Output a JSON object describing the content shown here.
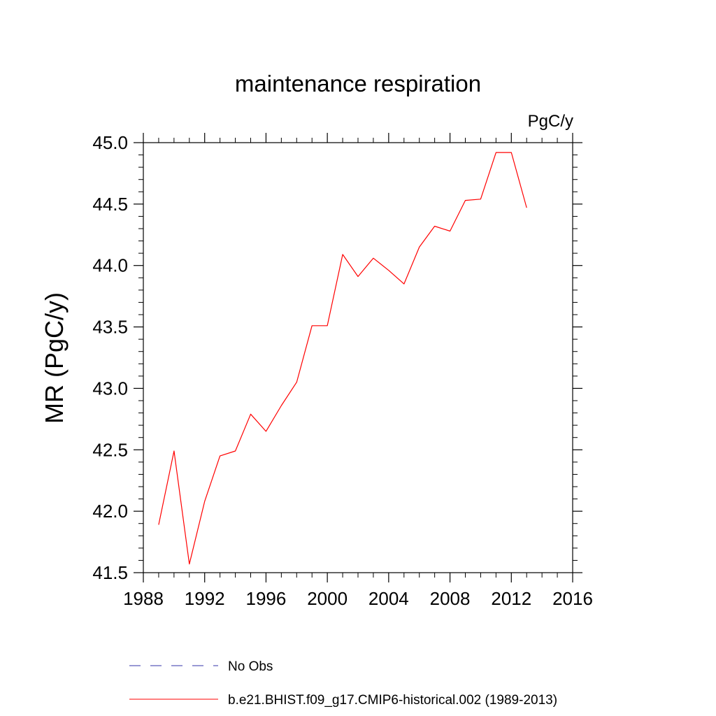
{
  "chart_data": {
    "type": "line",
    "title": "maintenance respiration",
    "units_label": "PgC/y",
    "xlabel": "",
    "ylabel": "MR  (PgC/y)",
    "xlim": [
      1988,
      2016
    ],
    "ylim": [
      41.5,
      45.0
    ],
    "x_ticks": [
      1988,
      1992,
      1996,
      2000,
      2004,
      2008,
      2012,
      2016
    ],
    "x_tick_labels": [
      "1988",
      "1992",
      "1996",
      "2000",
      "2004",
      "2008",
      "2012",
      "2016"
    ],
    "y_ticks": [
      41.5,
      42.0,
      42.5,
      43.0,
      43.5,
      44.0,
      44.5,
      45.0
    ],
    "y_tick_labels": [
      "41.5",
      "42.0",
      "42.5",
      "43.0",
      "43.5",
      "44.0",
      "44.5",
      "45.0"
    ],
    "grid": false,
    "legend_position": "bottom",
    "series": [
      {
        "name": "b.e21.BHIST.f09_g17.CMIP6-historical.002 (1989-2013)",
        "color": "#ff0000",
        "line_style": "solid",
        "x": [
          1989,
          1990,
          1991,
          1992,
          1993,
          1994,
          1995,
          1996,
          1997,
          1998,
          1999,
          2000,
          2001,
          2002,
          2003,
          2004,
          2005,
          2006,
          2007,
          2008,
          2009,
          2010,
          2011,
          2012,
          2013
        ],
        "y": [
          41.89,
          42.49,
          41.57,
          42.08,
          42.45,
          42.49,
          42.79,
          42.65,
          42.86,
          43.05,
          43.51,
          43.51,
          44.09,
          43.91,
          44.06,
          43.96,
          43.85,
          44.15,
          44.32,
          44.28,
          44.53,
          44.54,
          44.92,
          44.92,
          44.47
        ]
      }
    ],
    "legend_items": [
      {
        "label": "No Obs",
        "color": "#3333aa",
        "line_style": "dashed"
      },
      {
        "label": "b.e21.BHIST.f09_g17.CMIP6-historical.002 (1989-2013)",
        "color": "#ff0000",
        "line_style": "solid"
      }
    ]
  }
}
